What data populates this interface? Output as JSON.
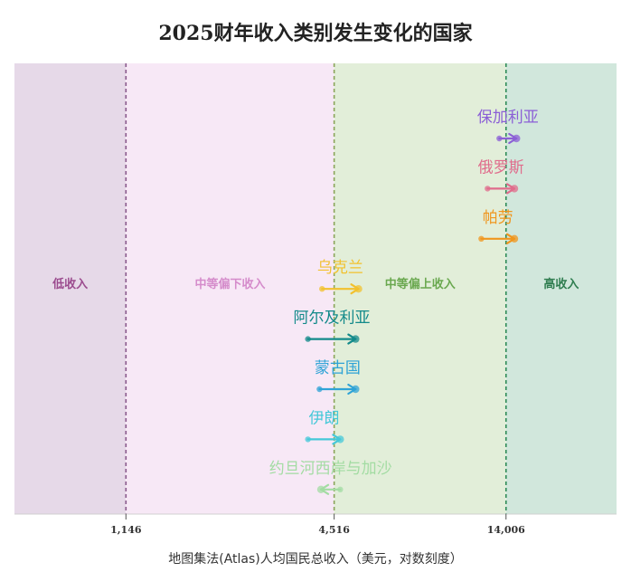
{
  "chart_data": {
    "type": "arrow-dot",
    "title": "2025财年收入类别发生变化的国家",
    "xlabel": "地图集法(Atlas)人均国民总收入（美元，对数刻度）",
    "x_scale": "log",
    "xlim": [
      550,
      29000
    ],
    "thresholds": [
      {
        "value": 1146,
        "label": "1,146",
        "color": "#8a5a8c"
      },
      {
        "value": 4516,
        "label": "4,516",
        "color": "#8aa55a"
      },
      {
        "value": 14006,
        "label": "14,006",
        "color": "#2e8b57"
      }
    ],
    "bands": [
      {
        "label": "低收入",
        "from": 550,
        "to": 1146,
        "fill": "#e6d9e8",
        "text_color": "#9b4b8e"
      },
      {
        "label": "中等偏下收入",
        "from": 1146,
        "to": 4516,
        "fill": "#f7e8f6",
        "text_color": "#d58ccb"
      },
      {
        "label": "中等偏上收入",
        "from": 4516,
        "to": 14006,
        "fill": "#e2eed9",
        "text_color": "#6aa84f"
      },
      {
        "label": "高收入",
        "from": 14006,
        "to": 29000,
        "fill": "#d1e7dc",
        "text_color": "#2e7d4f"
      }
    ],
    "series": [
      {
        "name": "保加利亚",
        "from": 13400,
        "to": 15000,
        "color": "#8b5fd6"
      },
      {
        "name": "俄罗斯",
        "from": 12400,
        "to": 14800,
        "color": "#e06c8c"
      },
      {
        "name": "帕劳",
        "from": 11900,
        "to": 14800,
        "color": "#f0961e"
      },
      {
        "name": "乌克兰",
        "from": 4170,
        "to": 5300,
        "color": "#f2c12e"
      },
      {
        "name": "阿尔及利亚",
        "from": 3800,
        "to": 5200,
        "color": "#138a8a"
      },
      {
        "name": "蒙古国",
        "from": 4100,
        "to": 5200,
        "color": "#2fa3d6"
      },
      {
        "name": "伊朗",
        "from": 3800,
        "to": 4700,
        "color": "#45c8d8"
      },
      {
        "name": "约旦河西岸与加沙",
        "from": 4700,
        "to": 4140,
        "color": "#a3dca3"
      }
    ]
  }
}
